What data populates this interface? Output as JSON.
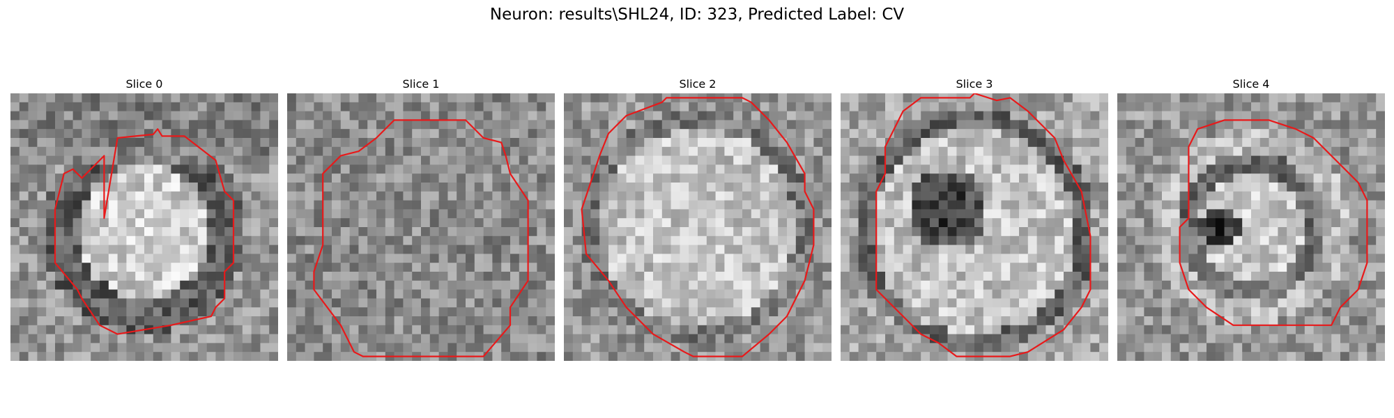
{
  "figure": {
    "title": "Neuron: results\\SHL24, ID: 323, Predicted Label: CV"
  },
  "panels": [
    {
      "title": "Slice 0",
      "pattern": "bright-core"
    },
    {
      "title": "Slice 1",
      "pattern": "uniform-noise"
    },
    {
      "title": "Slice 2",
      "pattern": "bright-disc"
    },
    {
      "title": "Slice 3",
      "pattern": "dark-nucleus"
    },
    {
      "title": "Slice 4",
      "pattern": "small-dark-nucleus"
    }
  ],
  "colors": {
    "contour": "#e8191a",
    "background": "#ffffff"
  },
  "image": {
    "grid": 30,
    "colormap": "gray"
  }
}
